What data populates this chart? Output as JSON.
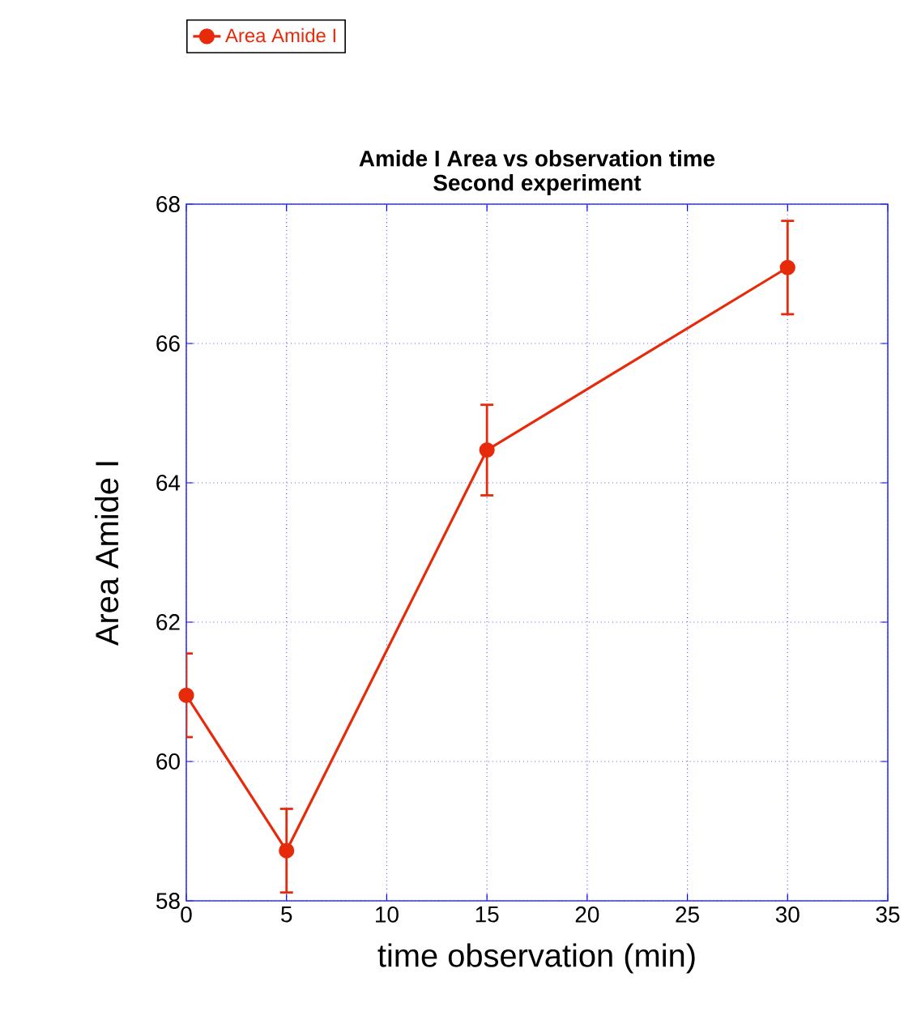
{
  "chart_data": {
    "type": "line",
    "title": "Amide I Area vs observation time",
    "subtitle": "Second experiment",
    "xlabel": "time observation (min)",
    "ylabel": "Area Amide I",
    "x": [
      0,
      5,
      15,
      30
    ],
    "series": [
      {
        "name": "Area Amide I",
        "color": "#e62a0a",
        "values": [
          60.95,
          58.72,
          64.47,
          67.09
        ],
        "errors": [
          0.6,
          0.6,
          0.65,
          0.67
        ]
      }
    ],
    "xlim": [
      0,
      35
    ],
    "xticks": [
      0,
      5,
      10,
      15,
      20,
      25,
      30,
      35
    ],
    "ylim": [
      58,
      68
    ],
    "yticks": [
      58,
      60,
      62,
      64,
      66,
      68
    ],
    "grid": true,
    "legend": "top left",
    "marker": "circle",
    "line_style": "solid"
  }
}
